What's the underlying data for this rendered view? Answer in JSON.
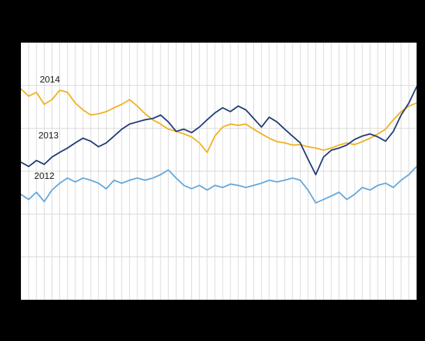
{
  "colors": {
    "page_background": "#000000",
    "plot_background": "#ffffff",
    "grid": "#d9d9d9"
  },
  "chart_data": {
    "type": "line",
    "title": "",
    "xlabel": "",
    "ylabel": "",
    "x_count": 52,
    "ylim": [
      0,
      60
    ],
    "y_gridline_step": 10,
    "grid": true,
    "legend_position": "inline-labels",
    "series": [
      {
        "name": "2014",
        "color": "#f0b323",
        "values": [
          49.2,
          47.5,
          48.4,
          45.6,
          46.7,
          48.9,
          48.4,
          45.9,
          44.3,
          43.1,
          43.4,
          43.9,
          44.8,
          45.6,
          46.7,
          45.2,
          43.4,
          42.0,
          41.0,
          39.8,
          39.3,
          38.7,
          38.0,
          36.6,
          34.4,
          38.2,
          40.3,
          41.0,
          40.7,
          41.0,
          39.8,
          38.7,
          37.7,
          36.9,
          36.6,
          36.1,
          36.2,
          35.7,
          35.4,
          34.9,
          35.4,
          36.1,
          36.6,
          36.2,
          36.9,
          37.7,
          38.7,
          39.8,
          42.0,
          43.9,
          45.2,
          45.9
        ]
      },
      {
        "name": "2013",
        "color": "#243f77",
        "values": [
          32.1,
          31.1,
          32.5,
          31.6,
          33.3,
          34.4,
          35.4,
          36.6,
          37.7,
          37.0,
          35.7,
          36.6,
          38.2,
          39.8,
          41.0,
          41.5,
          42.0,
          42.3,
          43.1,
          41.5,
          39.3,
          39.8,
          39.0,
          40.3,
          42.0,
          43.6,
          44.8,
          43.9,
          45.2,
          44.3,
          42.3,
          40.3,
          42.6,
          41.5,
          39.8,
          38.2,
          36.6,
          32.8,
          29.2,
          33.3,
          34.9,
          35.4,
          36.1,
          37.4,
          38.2,
          38.7,
          38.0,
          37.0,
          39.3,
          43.1,
          45.9,
          49.7
        ]
      },
      {
        "name": "2012",
        "color": "#66a9dc",
        "values": [
          24.6,
          23.4,
          25.1,
          22.9,
          25.6,
          27.2,
          28.4,
          27.5,
          28.4,
          27.9,
          27.2,
          25.9,
          27.9,
          27.2,
          27.9,
          28.4,
          27.9,
          28.4,
          29.2,
          30.3,
          28.4,
          26.7,
          25.9,
          26.7,
          25.6,
          26.7,
          26.2,
          27.0,
          26.7,
          26.2,
          26.7,
          27.2,
          27.9,
          27.5,
          27.9,
          28.4,
          27.9,
          25.6,
          22.6,
          23.4,
          24.2,
          25.1,
          23.4,
          24.6,
          26.2,
          25.6,
          26.7,
          27.2,
          26.2,
          27.9,
          29.2,
          31.1
        ]
      }
    ]
  }
}
